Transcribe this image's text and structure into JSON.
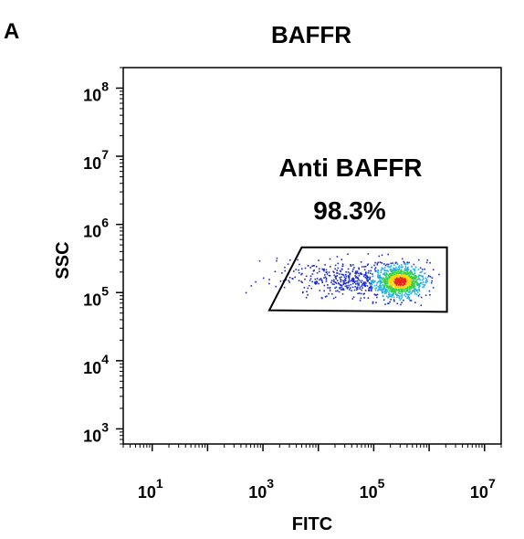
{
  "panel_label": "A",
  "chart_data": {
    "type": "scatter",
    "title": "BAFFR",
    "xlabel": "FITC",
    "ylabel": "SSC",
    "x_scale": "log",
    "y_scale": "log",
    "xlim": [
      3,
      20000000
    ],
    "ylim": [
      600,
      200000000
    ],
    "grid": false,
    "x_ticks": [
      {
        "base": "10",
        "exp": "1",
        "value": 10
      },
      {
        "base": "10",
        "exp": "3",
        "value": 1000
      },
      {
        "base": "10",
        "exp": "5",
        "value": 100000
      },
      {
        "base": "10",
        "exp": "7",
        "value": 10000000
      }
    ],
    "y_ticks": [
      {
        "base": "10",
        "exp": "3",
        "value": 1000
      },
      {
        "base": "10",
        "exp": "4",
        "value": 10000
      },
      {
        "base": "10",
        "exp": "5",
        "value": 100000
      },
      {
        "base": "10",
        "exp": "6",
        "value": 1000000
      },
      {
        "base": "10",
        "exp": "7",
        "value": 10000000
      },
      {
        "base": "10",
        "exp": "8",
        "value": 100000000
      }
    ],
    "gate": {
      "name": "Anti BAFFR",
      "percent": "98.3%",
      "vertices": [
        [
          1300,
          55000
        ],
        [
          5000,
          460000
        ],
        [
          2100000,
          460000
        ],
        [
          2100000,
          52000
        ]
      ]
    },
    "population": {
      "density": "high at x~3e5, y~1.5e5; sparse tail toward x~1e3",
      "color_scale": [
        "#1a2ccf",
        "#1fb0e8",
        "#35d24a",
        "#ffd700",
        "#e8251f"
      ],
      "clusters": [
        {
          "x_median": 300000,
          "y_median": 145000,
          "x_spread_decades": 0.22,
          "y_spread_decades": 0.12,
          "count": 900
        },
        {
          "x_median": 60000,
          "y_median": 150000,
          "x_spread_decades": 0.45,
          "y_spread_decades": 0.13,
          "count": 350
        },
        {
          "x_median": 8000,
          "y_median": 165000,
          "x_spread_decades": 0.5,
          "y_spread_decades": 0.14,
          "count": 110
        }
      ]
    }
  }
}
